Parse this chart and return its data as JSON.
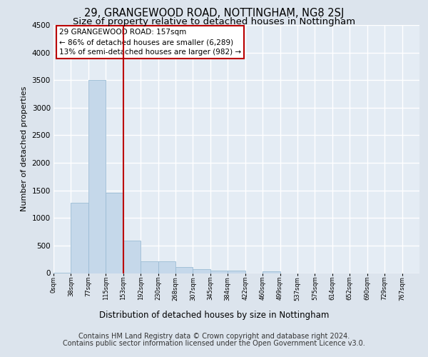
{
  "title1": "29, GRANGEWOOD ROAD, NOTTINGHAM, NG8 2SJ",
  "title2": "Size of property relative to detached houses in Nottingham",
  "xlabel": "Distribution of detached houses by size in Nottingham",
  "ylabel": "Number of detached properties",
  "footer1": "Contains HM Land Registry data © Crown copyright and database right 2024.",
  "footer2": "Contains public sector information licensed under the Open Government Licence v3.0.",
  "bin_labels": [
    "0sqm",
    "38sqm",
    "77sqm",
    "115sqm",
    "153sqm",
    "192sqm",
    "230sqm",
    "268sqm",
    "307sqm",
    "345sqm",
    "384sqm",
    "422sqm",
    "460sqm",
    "499sqm",
    "537sqm",
    "575sqm",
    "614sqm",
    "652sqm",
    "690sqm",
    "729sqm",
    "767sqm"
  ],
  "bar_values": [
    8,
    1270,
    3500,
    1460,
    590,
    215,
    215,
    110,
    75,
    50,
    40,
    0,
    35,
    0,
    0,
    0,
    0,
    0,
    0,
    0,
    0
  ],
  "bar_color": "#c5d8ea",
  "bar_edge_color": "#9bbcd4",
  "vline_index": 4,
  "vline_color": "#bb0000",
  "annotation_line1": "29 GRANGEWOOD ROAD: 157sqm",
  "annotation_line2": "← 86% of detached houses are smaller (6,289)",
  "annotation_line3": "13% of semi-detached houses are larger (982) →",
  "annotation_box_color": "#ffffff",
  "annotation_box_edge": "#bb0000",
  "ylim_max": 4500,
  "yticks": [
    0,
    500,
    1000,
    1500,
    2000,
    2500,
    3000,
    3500,
    4000,
    4500
  ],
  "fig_bg": "#dce4ed",
  "axes_bg": "#e4ecf4",
  "grid_color": "#ffffff",
  "title1_size": 10.5,
  "title2_size": 9.5,
  "ylabel_size": 8,
  "xlabel_size": 8.5,
  "tick_size": 7.5,
  "ann_size": 7.5,
  "footer_size": 7
}
